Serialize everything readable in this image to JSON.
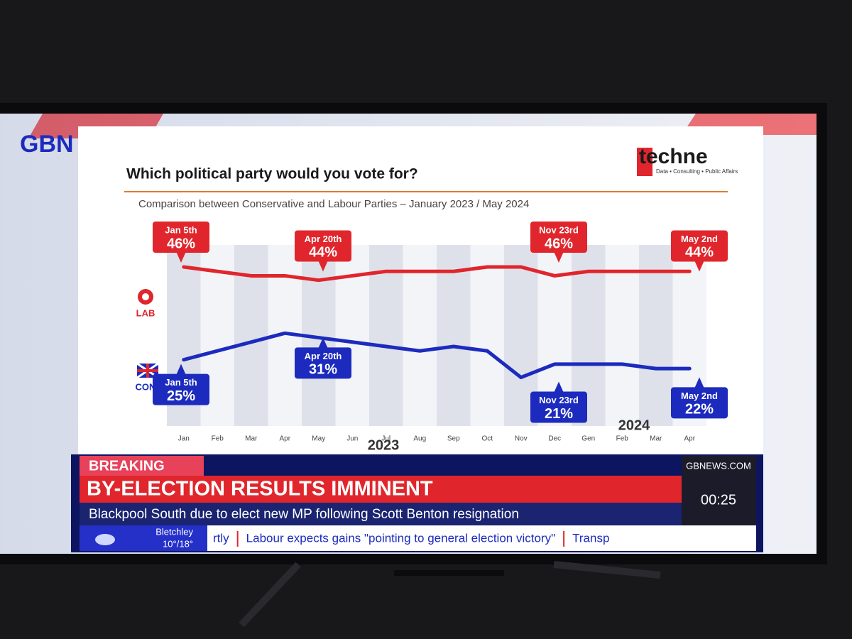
{
  "chart_data": {
    "type": "line",
    "title": "Which political party would you vote for?",
    "subtitle": "Comparison between Conservative and Labour Parties – January 2023  / May 2024",
    "categories": [
      "Jan",
      "Feb",
      "Mar",
      "Apr",
      "May",
      "Jun",
      "Jul",
      "Aug",
      "Sep",
      "Oct",
      "Nov",
      "Dec",
      "Gen",
      "Feb",
      "Mar",
      "Apr"
    ],
    "years": [
      "2023",
      "2024"
    ],
    "ylim": [
      10,
      55
    ],
    "series": [
      {
        "name": "LAB",
        "color": "#e0262c",
        "values": [
          46,
          45,
          44,
          44,
          43,
          44,
          45,
          45,
          45,
          46,
          46,
          44,
          45,
          45,
          45,
          45
        ],
        "annotations": [
          {
            "date": "Jan 5th",
            "value": 46,
            "label": "46%"
          },
          {
            "date": "Apr 20th",
            "value": 44,
            "label": "44%"
          },
          {
            "date": "Nov 23rd",
            "value": 46,
            "label": "46%"
          },
          {
            "date": "May 2nd",
            "value": 44,
            "label": "44%"
          }
        ]
      },
      {
        "name": "CON",
        "color": "#1c2bbd",
        "values": [
          25,
          27,
          29,
          31,
          30,
          29,
          28,
          27,
          28,
          27,
          21,
          24,
          24,
          24,
          23,
          23
        ],
        "annotations": [
          {
            "date": "Jan 5th",
            "value": 25,
            "label": "25%"
          },
          {
            "date": "Apr 20th",
            "value": 31,
            "label": "31%"
          },
          {
            "date": "Nov 23rd",
            "value": 21,
            "label": "21%"
          },
          {
            "date": "May 2nd",
            "value": 22,
            "label": "22%"
          }
        ]
      }
    ]
  },
  "broadcast": {
    "channel": "GBN",
    "brand": "techne",
    "brand_tagline": "Data • Consulting • Public Affairs",
    "breaking": "BREAKING",
    "headline": "BY-ELECTION RESULTS IMMINENT",
    "strap": "Blackpool South due to elect new MP following Scott Benton resignation",
    "website": "GBNEWS.COM",
    "clock": "00:25",
    "weather_place": "Bletchley",
    "weather_temp": "10°/18°",
    "ticker": [
      "rtly",
      "Labour expects gains \"pointing to general election victory\"",
      "Transp"
    ]
  }
}
